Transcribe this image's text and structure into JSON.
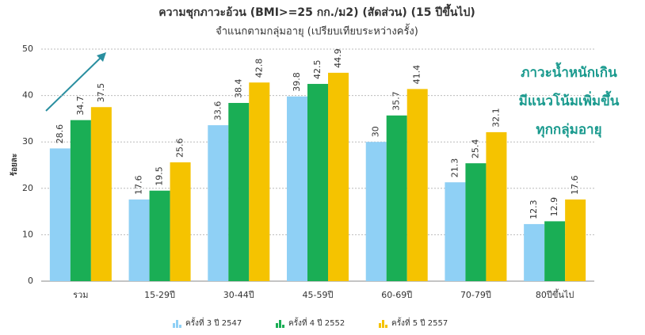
{
  "chart_data": {
    "type": "bar",
    "title": "ความชุกภาวะอ้วน (BMI>=25 กก./ม2) (สัดส่วน) (15 ปีขึ้นไป)",
    "subtitle": "จำแนกตามกลุ่มอายุ (เปรียบเทียบระหว่างครั้ง)",
    "y_label": "ร้อยละ",
    "annotation": [
      "ภาวะน้ำหนักเกิน",
      "มีแนวโน้มเพิ่มขึ้น",
      "ทุกกลุ่มอายุ"
    ],
    "categories": [
      "รวม",
      "15-29ปี",
      "30-44ปี",
      "45-59ปี",
      "60-69ปี",
      "70-79ปี",
      "80ปีขึ้นไป"
    ],
    "series": [
      {
        "name": "ครั้งที่ 3 ปี 2547",
        "color": "#8fd0f5",
        "values": [
          28.6,
          17.6,
          33.6,
          39.8,
          30,
          21.3,
          12.3
        ]
      },
      {
        "name": "ครั้งที่ 4 ปี 2552",
        "color": "#1aae55",
        "values": [
          34.7,
          19.5,
          38.4,
          42.5,
          35.7,
          25.4,
          12.9
        ]
      },
      {
        "name": "ครั้งที่ 5 ปี 2557",
        "color": "#f5c300",
        "values": [
          37.5,
          25.6,
          42.8,
          44.9,
          41.4,
          32.1,
          17.6
        ]
      }
    ],
    "ylim": [
      0,
      50
    ],
    "yticks": [
      0,
      10,
      20,
      30,
      40,
      50
    ],
    "grid": true
  }
}
